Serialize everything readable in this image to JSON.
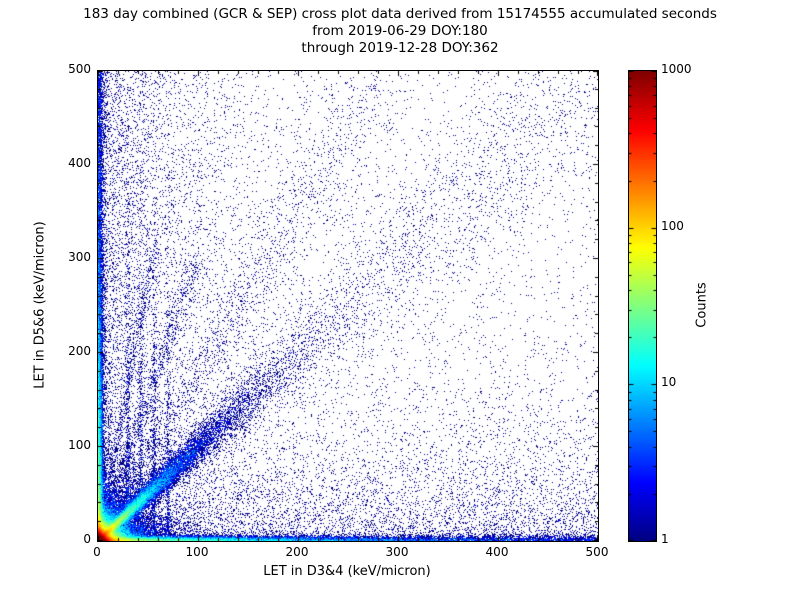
{
  "chart_data": {
    "type": "scatter",
    "subtype": "2d-density-cross-plot",
    "title_line1": "183 day combined (GCR & SEP) cross plot data derived from 15174555 accumulated seconds",
    "title_line2": "from 2019-06-29 DOY:180",
    "title_line3": "through 2019-12-28 DOY:362",
    "xlabel": "LET in D3&4 (keV/micron)",
    "ylabel": "LET in D5&6 (keV/micron)",
    "xlim": [
      0,
      500
    ],
    "ylim": [
      0,
      500
    ],
    "xticks": [
      0,
      100,
      200,
      300,
      400,
      500
    ],
    "yticks": [
      0,
      100,
      200,
      300,
      400,
      500
    ],
    "minor_tick_step": 20,
    "grid": false,
    "colorbar": {
      "label": "Counts",
      "scale": "log",
      "min": 1,
      "max": 1000,
      "ticks": [
        1000,
        100,
        10,
        1
      ],
      "colormap": "jet",
      "low_color": "#000080",
      "high_color": "#800000"
    },
    "seed": 20190629,
    "features": [
      {
        "type": "exp2d",
        "name": "origin-core",
        "n": 90000,
        "sx": 2.5,
        "sy": 2.5
      },
      {
        "type": "exp2d",
        "name": "origin-halo",
        "n": 40000,
        "sx": 7,
        "sy": 7
      },
      {
        "type": "exp2d",
        "name": "origin-wide-halo",
        "n": 12000,
        "sx": 18,
        "sy": 18
      },
      {
        "type": "diag",
        "name": "main-diagonal",
        "n": 22000,
        "scale": 40,
        "noise0": 1.2,
        "noisek": 0.06
      },
      {
        "type": "diag-uniform",
        "name": "diagonal-tail",
        "n": 3000,
        "tmax": 500,
        "noise0": 3,
        "noisek": 0.09
      },
      {
        "type": "axis-x",
        "name": "d34-axis-band",
        "n": 14000,
        "long_scale": 110,
        "thick": 2.2
      },
      {
        "type": "axis-x-uniform",
        "name": "d34-axis-tail",
        "n": 3500,
        "thick": 3.5
      },
      {
        "type": "axis-y",
        "name": "d56-axis-band",
        "n": 14000,
        "long_scale": 110,
        "thick": 2.2
      },
      {
        "type": "axis-y-uniform",
        "name": "d56-axis-tail",
        "n": 3500,
        "thick": 3.5
      },
      {
        "type": "halfplane-x",
        "name": "left-scatter",
        "n": 6000,
        "scale": 60
      },
      {
        "type": "halfplane-y",
        "name": "bottom-scatter",
        "n": 6000,
        "scale": 60
      },
      {
        "type": "uniform",
        "name": "background-speckle",
        "n": 3000
      },
      {
        "type": "line",
        "name": "steep-streak",
        "n": 1400,
        "slope": 1.75,
        "xmax": 290,
        "noise0": 2,
        "noisek": 0.07
      },
      {
        "type": "line",
        "name": "ray-slope-3",
        "n": 700,
        "slope": 3,
        "xmax": 100,
        "noise0": 1,
        "noisek": 0.05
      },
      {
        "type": "line",
        "name": "ray-slope-5",
        "n": 500,
        "slope": 5.5,
        "xmax": 60,
        "noise0": 1,
        "noisek": 0.04
      },
      {
        "type": "vline",
        "name": "track-30",
        "n": 600,
        "x": 30,
        "width": 1.2,
        "yscale": 140
      },
      {
        "type": "vline",
        "name": "track-43",
        "n": 520,
        "x": 43,
        "width": 1.2,
        "yscale": 130
      },
      {
        "type": "vline",
        "name": "track-56",
        "n": 450,
        "x": 56,
        "width": 1.2,
        "yscale": 120
      },
      {
        "type": "vline",
        "name": "track-70",
        "n": 380,
        "x": 70,
        "width": 1.2,
        "yscale": 110
      }
    ]
  }
}
